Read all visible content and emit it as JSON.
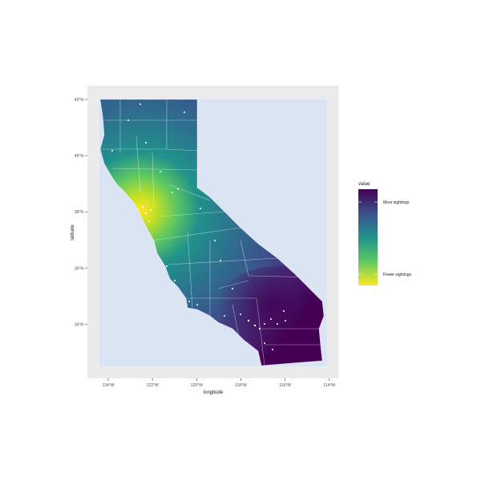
{
  "chart_data": {
    "type": "heatmap",
    "xlabel": "longitude",
    "ylabel": "latitude",
    "x_ticks": [
      "124°W",
      "122°W",
      "120°W",
      "118°W",
      "116°W",
      "114°W"
    ],
    "y_ticks": [
      "34°N",
      "36°N",
      "38°N",
      "40°N",
      "42°N"
    ],
    "xlim": [
      -124.5,
      -114
    ],
    "ylim": [
      32.5,
      42
    ],
    "legend": {
      "title": "value",
      "labels": [
        "More sightings",
        "Fewer sightings"
      ],
      "placement": "right"
    },
    "colors": {
      "panel_background": "#ebebeb",
      "ocean_fill": "#dbe4f2",
      "scale_high": "#440154",
      "scale_mid": "#21918c",
      "scale_low": "#fde725"
    },
    "grid": false
  }
}
